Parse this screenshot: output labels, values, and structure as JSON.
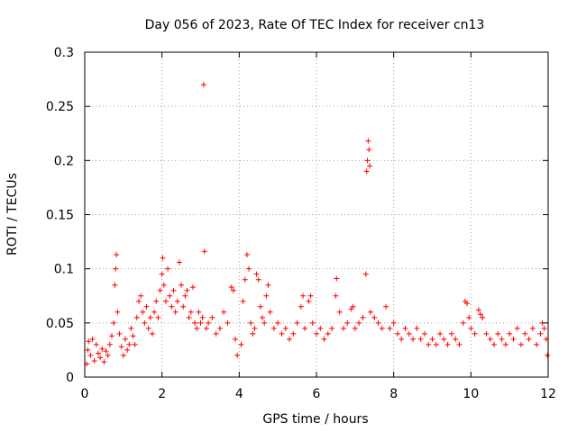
{
  "chart_data": {
    "type": "scatter",
    "title": "Day 056 of 2023, Rate Of TEC Index for receiver cn13",
    "xlabel": "GPS time / hours",
    "ylabel": "ROTI / TECUs",
    "xlim": [
      0,
      12
    ],
    "ylim": [
      0,
      0.3
    ],
    "xticks": [
      0,
      2,
      4,
      6,
      8,
      10,
      12
    ],
    "xtick_labels": [
      "0",
      "2",
      "4",
      "6",
      "8",
      "10",
      "12"
    ],
    "yticks": [
      0,
      0.05,
      0.1,
      0.15,
      0.2,
      0.25,
      0.3
    ],
    "ytick_labels": [
      "0",
      "0.05",
      "0.1",
      "0.15",
      "0.2",
      "0.25",
      "0.3"
    ],
    "grid": true,
    "marker": "+",
    "color": "#ff0000",
    "series": [
      {
        "name": "ROTI",
        "points": [
          [
            0.05,
            0.012
          ],
          [
            0.08,
            0.025
          ],
          [
            0.1,
            0.033
          ],
          [
            0.15,
            0.02
          ],
          [
            0.2,
            0.035
          ],
          [
            0.25,
            0.015
          ],
          [
            0.3,
            0.03
          ],
          [
            0.35,
            0.022
          ],
          [
            0.4,
            0.018
          ],
          [
            0.45,
            0.026
          ],
          [
            0.5,
            0.014
          ],
          [
            0.55,
            0.024
          ],
          [
            0.6,
            0.02
          ],
          [
            0.65,
            0.03
          ],
          [
            0.7,
            0.038
          ],
          [
            0.75,
            0.05
          ],
          [
            0.78,
            0.085
          ],
          [
            0.8,
            0.1
          ],
          [
            0.82,
            0.113
          ],
          [
            0.85,
            0.06
          ],
          [
            0.9,
            0.04
          ],
          [
            0.95,
            0.028
          ],
          [
            1.0,
            0.02
          ],
          [
            1.05,
            0.035
          ],
          [
            1.1,
            0.025
          ],
          [
            1.15,
            0.03
          ],
          [
            1.2,
            0.045
          ],
          [
            1.25,
            0.038
          ],
          [
            1.3,
            0.03
          ],
          [
            1.35,
            0.055
          ],
          [
            1.4,
            0.07
          ],
          [
            1.45,
            0.075
          ],
          [
            1.5,
            0.06
          ],
          [
            1.55,
            0.05
          ],
          [
            1.6,
            0.065
          ],
          [
            1.65,
            0.045
          ],
          [
            1.7,
            0.055
          ],
          [
            1.75,
            0.04
          ],
          [
            1.8,
            0.06
          ],
          [
            1.85,
            0.07
          ],
          [
            1.9,
            0.055
          ],
          [
            1.95,
            0.08
          ],
          [
            2.0,
            0.095
          ],
          [
            2.02,
            0.11
          ],
          [
            2.05,
            0.085
          ],
          [
            2.1,
            0.07
          ],
          [
            2.15,
            0.1
          ],
          [
            2.2,
            0.075
          ],
          [
            2.25,
            0.065
          ],
          [
            2.3,
            0.08
          ],
          [
            2.35,
            0.06
          ],
          [
            2.4,
            0.07
          ],
          [
            2.45,
            0.106
          ],
          [
            2.5,
            0.085
          ],
          [
            2.55,
            0.065
          ],
          [
            2.6,
            0.075
          ],
          [
            2.65,
            0.08
          ],
          [
            2.7,
            0.055
          ],
          [
            2.75,
            0.06
          ],
          [
            2.8,
            0.083
          ],
          [
            2.85,
            0.05
          ],
          [
            2.9,
            0.045
          ],
          [
            2.95,
            0.06
          ],
          [
            3.0,
            0.05
          ],
          [
            3.05,
            0.055
          ],
          [
            3.08,
            0.27
          ],
          [
            3.1,
            0.116
          ],
          [
            3.15,
            0.045
          ],
          [
            3.2,
            0.05
          ],
          [
            3.3,
            0.055
          ],
          [
            3.4,
            0.04
          ],
          [
            3.5,
            0.045
          ],
          [
            3.6,
            0.06
          ],
          [
            3.7,
            0.05
          ],
          [
            3.8,
            0.083
          ],
          [
            3.85,
            0.08
          ],
          [
            3.9,
            0.035
          ],
          [
            3.95,
            0.02
          ],
          [
            4.05,
            0.03
          ],
          [
            4.1,
            0.07
          ],
          [
            4.15,
            0.09
          ],
          [
            4.2,
            0.113
          ],
          [
            4.25,
            0.1
          ],
          [
            4.3,
            0.05
          ],
          [
            4.35,
            0.04
          ],
          [
            4.4,
            0.045
          ],
          [
            4.45,
            0.095
          ],
          [
            4.5,
            0.09
          ],
          [
            4.55,
            0.065
          ],
          [
            4.6,
            0.055
          ],
          [
            4.65,
            0.05
          ],
          [
            4.7,
            0.075
          ],
          [
            4.75,
            0.085
          ],
          [
            4.8,
            0.06
          ],
          [
            4.9,
            0.045
          ],
          [
            5.0,
            0.05
          ],
          [
            5.1,
            0.04
          ],
          [
            5.2,
            0.045
          ],
          [
            5.3,
            0.035
          ],
          [
            5.4,
            0.04
          ],
          [
            5.5,
            0.05
          ],
          [
            5.6,
            0.065
          ],
          [
            5.65,
            0.075
          ],
          [
            5.7,
            0.045
          ],
          [
            5.8,
            0.07
          ],
          [
            5.85,
            0.075
          ],
          [
            5.9,
            0.05
          ],
          [
            6.0,
            0.04
          ],
          [
            6.1,
            0.045
          ],
          [
            6.2,
            0.035
          ],
          [
            6.3,
            0.04
          ],
          [
            6.4,
            0.045
          ],
          [
            6.5,
            0.075
          ],
          [
            6.52,
            0.091
          ],
          [
            6.6,
            0.06
          ],
          [
            6.7,
            0.045
          ],
          [
            6.8,
            0.05
          ],
          [
            6.9,
            0.063
          ],
          [
            6.95,
            0.065
          ],
          [
            7.0,
            0.045
          ],
          [
            7.1,
            0.05
          ],
          [
            7.2,
            0.055
          ],
          [
            7.28,
            0.095
          ],
          [
            7.3,
            0.19
          ],
          [
            7.32,
            0.2
          ],
          [
            7.34,
            0.218
          ],
          [
            7.36,
            0.21
          ],
          [
            7.38,
            0.195
          ],
          [
            7.4,
            0.06
          ],
          [
            7.5,
            0.055
          ],
          [
            7.6,
            0.05
          ],
          [
            7.7,
            0.045
          ],
          [
            7.8,
            0.065
          ],
          [
            7.9,
            0.045
          ],
          [
            8.0,
            0.05
          ],
          [
            8.1,
            0.04
          ],
          [
            8.2,
            0.035
          ],
          [
            8.3,
            0.045
          ],
          [
            8.4,
            0.04
          ],
          [
            8.5,
            0.035
          ],
          [
            8.6,
            0.045
          ],
          [
            8.7,
            0.035
          ],
          [
            8.8,
            0.04
          ],
          [
            8.9,
            0.03
          ],
          [
            9.0,
            0.035
          ],
          [
            9.1,
            0.03
          ],
          [
            9.2,
            0.04
          ],
          [
            9.3,
            0.035
          ],
          [
            9.4,
            0.03
          ],
          [
            9.5,
            0.04
          ],
          [
            9.6,
            0.035
          ],
          [
            9.7,
            0.03
          ],
          [
            9.8,
            0.05
          ],
          [
            9.85,
            0.07
          ],
          [
            9.9,
            0.068
          ],
          [
            9.95,
            0.055
          ],
          [
            10.0,
            0.045
          ],
          [
            10.1,
            0.04
          ],
          [
            10.2,
            0.062
          ],
          [
            10.25,
            0.058
          ],
          [
            10.3,
            0.055
          ],
          [
            10.4,
            0.04
          ],
          [
            10.5,
            0.035
          ],
          [
            10.6,
            0.03
          ],
          [
            10.7,
            0.04
          ],
          [
            10.8,
            0.035
          ],
          [
            10.9,
            0.03
          ],
          [
            11.0,
            0.04
          ],
          [
            11.1,
            0.035
          ],
          [
            11.2,
            0.045
          ],
          [
            11.3,
            0.03
          ],
          [
            11.4,
            0.04
          ],
          [
            11.5,
            0.035
          ],
          [
            11.6,
            0.045
          ],
          [
            11.7,
            0.03
          ],
          [
            11.8,
            0.04
          ],
          [
            11.85,
            0.05
          ],
          [
            11.9,
            0.045
          ],
          [
            11.95,
            0.035
          ],
          [
            11.98,
            0.02
          ]
        ]
      }
    ]
  }
}
